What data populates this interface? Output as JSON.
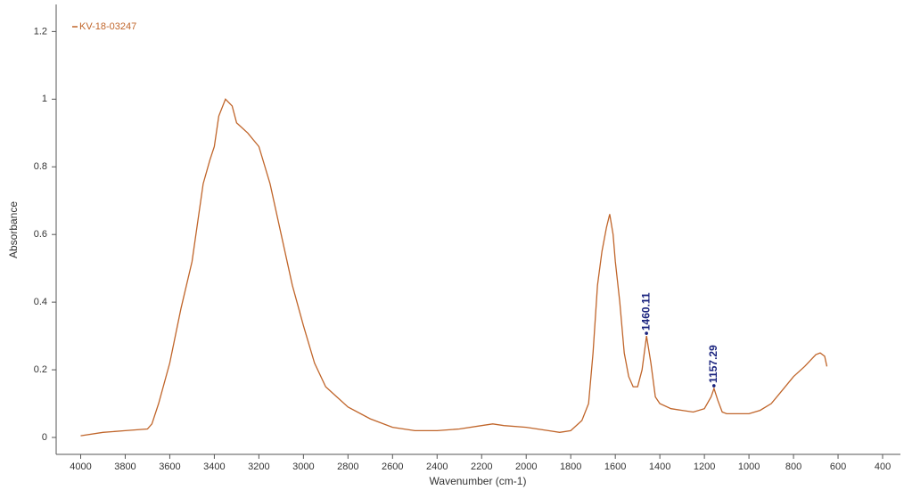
{
  "chart_data": {
    "type": "line",
    "x_label": "Wavenumber (cm-1)",
    "y_label": "Absorbance",
    "x": [
      4000,
      3900,
      3800,
      3700,
      3680,
      3650,
      3600,
      3550,
      3500,
      3450,
      3420,
      3400,
      3380,
      3350,
      3320,
      3300,
      3250,
      3200,
      3150,
      3100,
      3050,
      3000,
      2950,
      2900,
      2850,
      2800,
      2700,
      2600,
      2500,
      2400,
      2300,
      2200,
      2150,
      2100,
      2000,
      1900,
      1850,
      1800,
      1750,
      1720,
      1700,
      1680,
      1660,
      1640,
      1625,
      1610,
      1600,
      1580,
      1560,
      1540,
      1520,
      1500,
      1480,
      1460,
      1440,
      1420,
      1400,
      1350,
      1300,
      1250,
      1200,
      1170,
      1157,
      1140,
      1120,
      1100,
      1050,
      1000,
      950,
      900,
      850,
      800,
      750,
      700,
      680,
      660,
      650
    ],
    "series": [
      {
        "name": "KV-18-03247",
        "color": "#c0652a",
        "values": [
          0.005,
          0.015,
          0.02,
          0.025,
          0.04,
          0.1,
          0.22,
          0.38,
          0.52,
          0.75,
          0.82,
          0.86,
          0.95,
          1.0,
          0.98,
          0.93,
          0.9,
          0.86,
          0.75,
          0.6,
          0.45,
          0.33,
          0.22,
          0.15,
          0.12,
          0.09,
          0.055,
          0.03,
          0.02,
          0.02,
          0.025,
          0.035,
          0.04,
          0.035,
          0.03,
          0.02,
          0.015,
          0.02,
          0.05,
          0.1,
          0.25,
          0.45,
          0.55,
          0.62,
          0.66,
          0.6,
          0.52,
          0.4,
          0.25,
          0.18,
          0.15,
          0.15,
          0.2,
          0.3,
          0.22,
          0.12,
          0.1,
          0.085,
          0.08,
          0.075,
          0.085,
          0.12,
          0.145,
          0.11,
          0.075,
          0.07,
          0.07,
          0.07,
          0.08,
          0.1,
          0.14,
          0.18,
          0.21,
          0.245,
          0.25,
          0.24,
          0.21
        ]
      }
    ],
    "annotations": [
      {
        "x": 1460.11,
        "y": 0.3
      },
      {
        "x": 1157.29,
        "y": 0.145
      }
    ],
    "annotation_color": "#1a237e",
    "xlim": [
      4110,
      320
    ],
    "ylim": [
      -0.05,
      1.28
    ],
    "xticks": [
      4000,
      3800,
      3600,
      3400,
      3200,
      3000,
      2800,
      2600,
      2400,
      2200,
      2000,
      1800,
      1600,
      1400,
      1200,
      1000,
      800,
      600,
      400
    ],
    "yticks": [
      0,
      0.2,
      0.4,
      0.6,
      0.8,
      1,
      1.2
    ],
    "legend": "upper left",
    "grid": false
  }
}
